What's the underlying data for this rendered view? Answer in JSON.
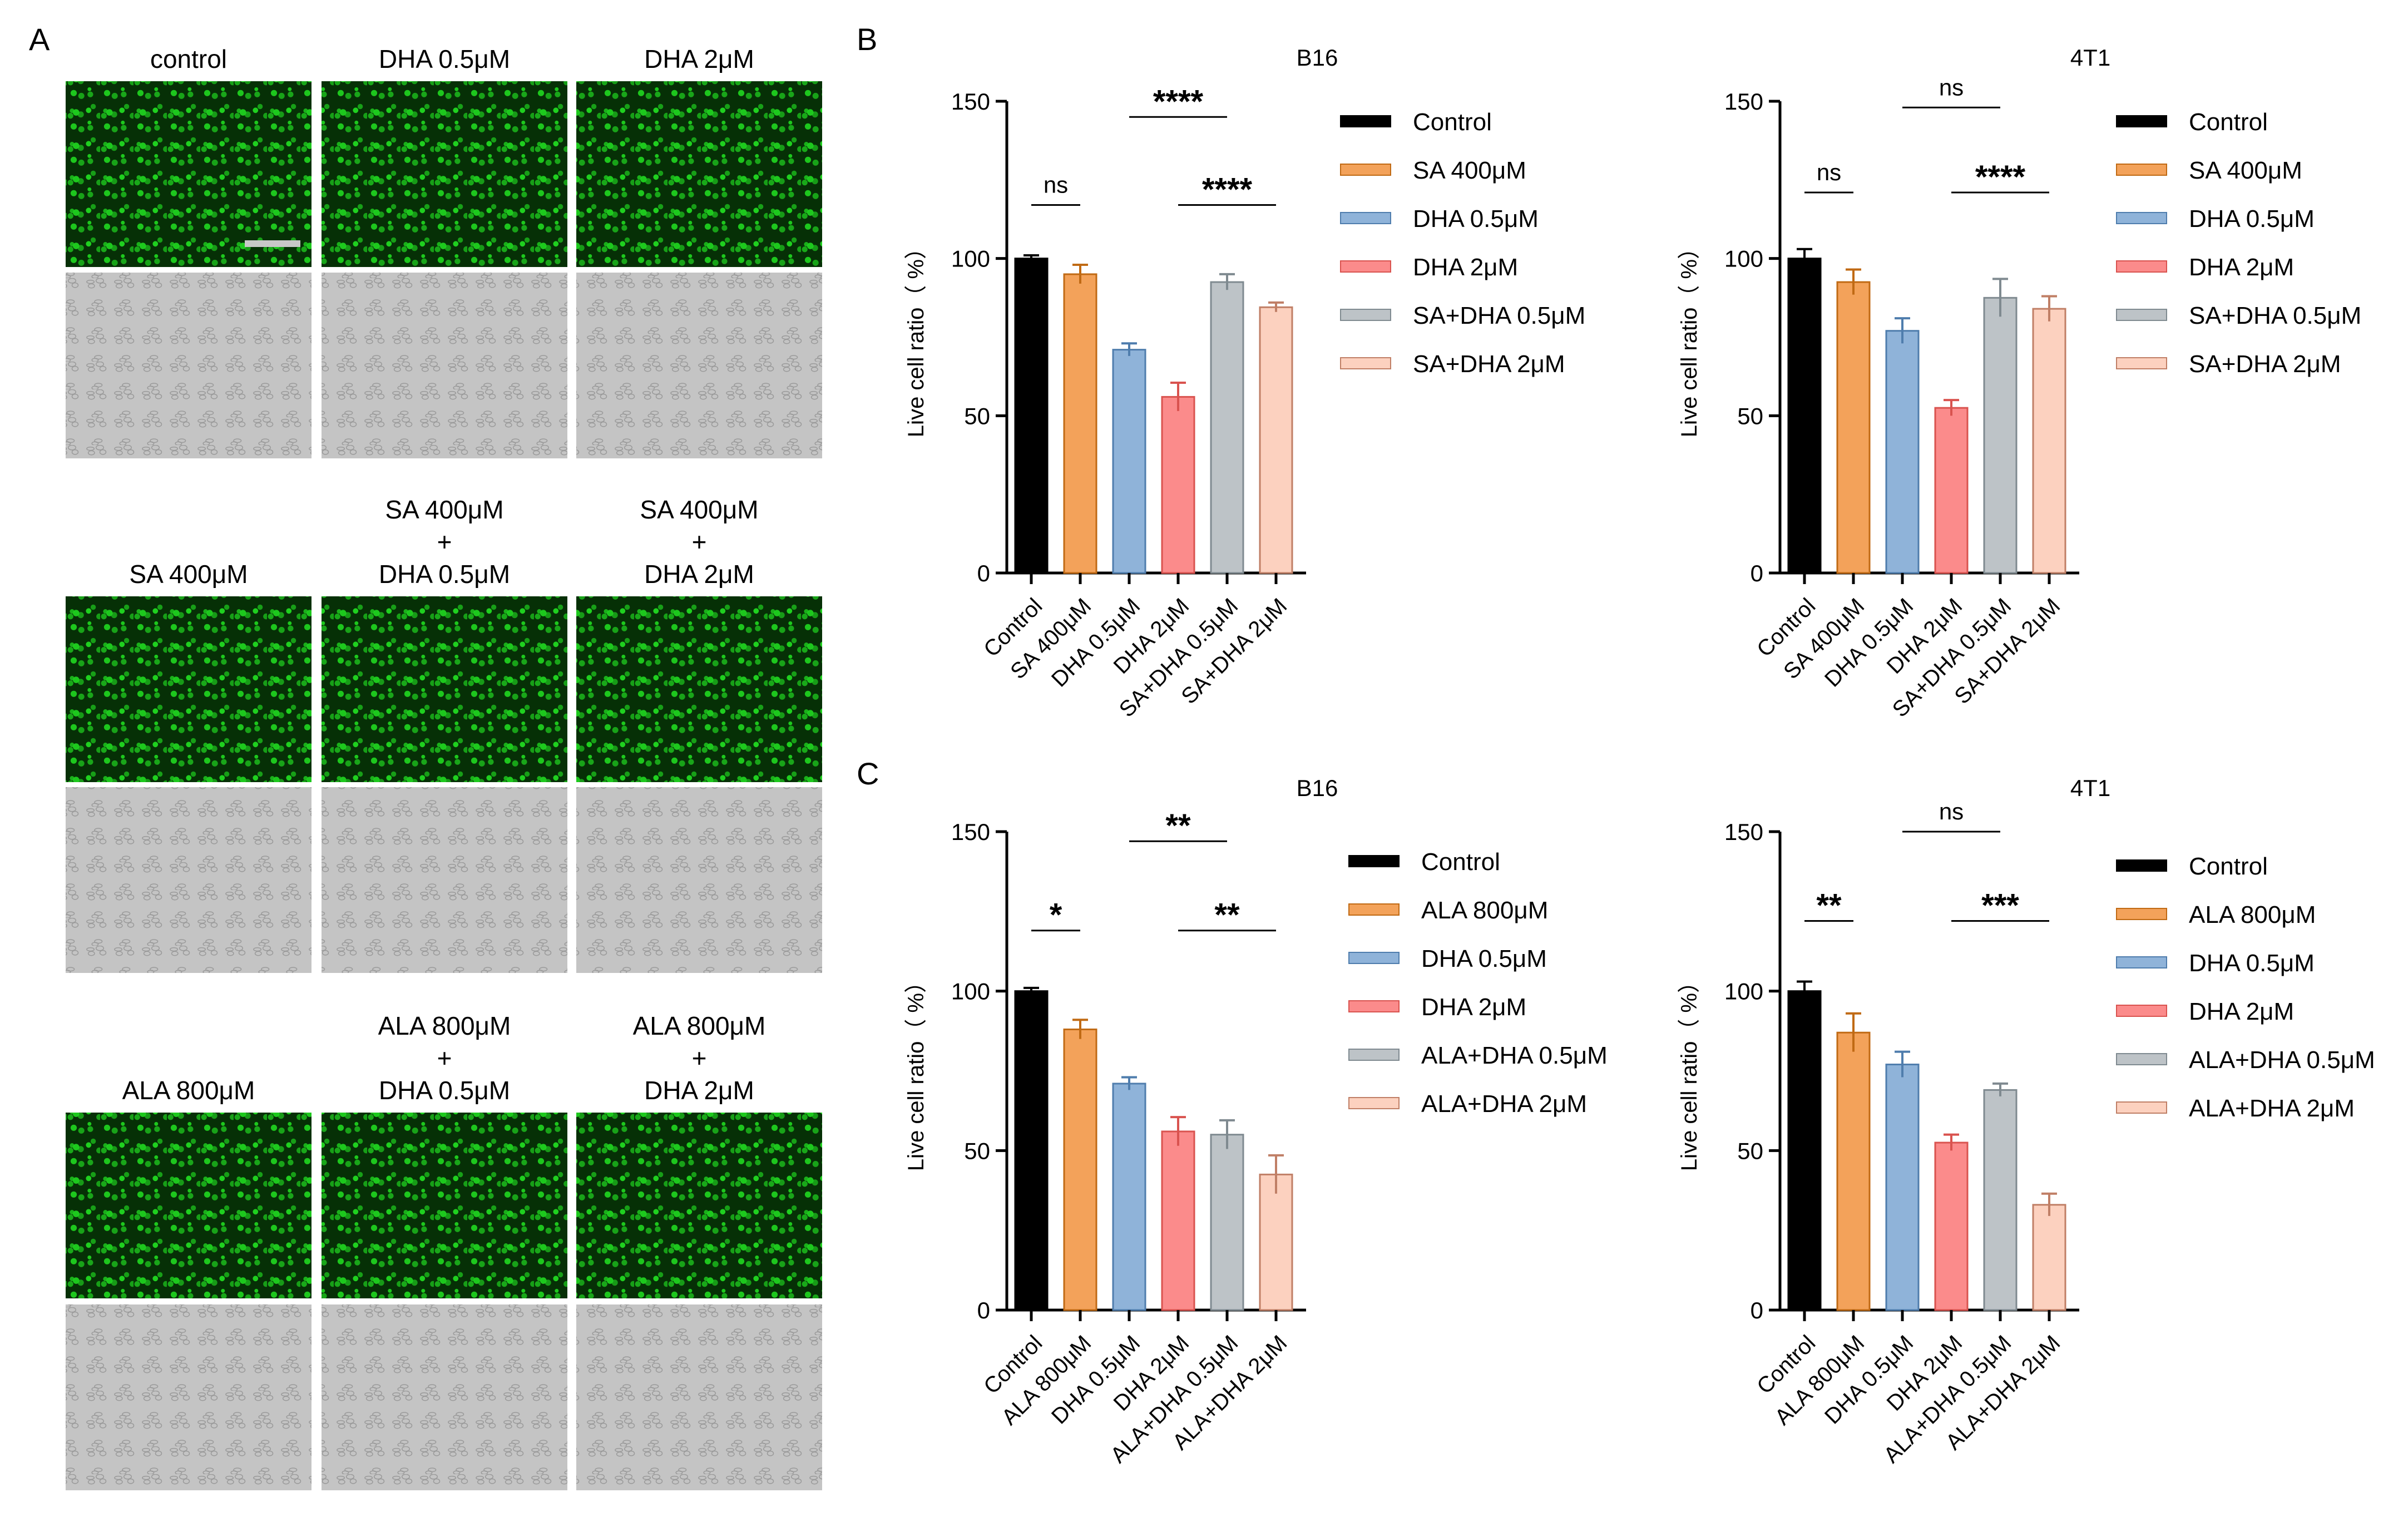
{
  "panel_labels": {
    "a": "A",
    "b": "B",
    "c": "C"
  },
  "micrographs": {
    "rows": [
      {
        "column_labels": [
          [
            "control"
          ],
          [
            "DHA 0.5μM"
          ],
          [
            "DHA 2μM"
          ]
        ]
      },
      {
        "column_labels": [
          [
            "SA 400μM"
          ],
          [
            "SA 400μM",
            "+",
            "DHA 0.5μM"
          ],
          [
            "SA 400μM",
            "+",
            "DHA 2μM"
          ]
        ]
      },
      {
        "column_labels": [
          [
            "ALA 800μM"
          ],
          [
            "ALA 800μM",
            "+",
            "DHA 0.5μM"
          ],
          [
            "ALA 800μM",
            "+",
            "DHA 2μM"
          ]
        ]
      }
    ],
    "fluorescence_color": "#1fd01f",
    "scale_bar": true
  },
  "chart_data": [
    {
      "panel": "B",
      "type": "bar",
      "title": "B16",
      "ylabel": "Live cell ratio（ %）",
      "ylim": [
        0,
        150
      ],
      "yticks": [
        0,
        50,
        100,
        150
      ],
      "categories": [
        "Control",
        "SA 400μM",
        "DHA 0.5μM",
        "DHA 2μM",
        "SA+DHA 0.5μM",
        "SA+DHA 2μM"
      ],
      "values": [
        100,
        95,
        71,
        56,
        92.5,
        84.5
      ],
      "errors": [
        1,
        3,
        2,
        4.5,
        2.5,
        1.5
      ],
      "colors": [
        "#000000",
        "#f3a25a",
        "#8fb3d9",
        "#fb8b8b",
        "#bdc3c7",
        "#fcd1bf"
      ],
      "edge_colors": [
        "#000000",
        "#c06a14",
        "#4f7dad",
        "#d9534f",
        "#7f8a90",
        "#c07f66"
      ],
      "legend": [
        "Control",
        "SA 400μM",
        "DHA 0.5μM",
        "DHA 2μM",
        "SA+DHA 0.5μM",
        "SA+DHA 2μM"
      ],
      "legend_position": "right",
      "significance": [
        {
          "label": "ns",
          "from": 0,
          "to": 1,
          "y": 117
        },
        {
          "label": "****",
          "from": 2,
          "to": 4,
          "y": 145
        },
        {
          "label": "****",
          "from": 3,
          "to": 5,
          "y": 117
        }
      ]
    },
    {
      "panel": "B",
      "type": "bar",
      "title": "4T1",
      "ylabel": "Live cell ratio（ %）",
      "ylim": [
        0,
        150
      ],
      "yticks": [
        0,
        50,
        100,
        150
      ],
      "categories": [
        "Control",
        "SA 400μM",
        "DHA 0.5μM",
        "DHA 2μM",
        "SA+DHA 0.5μM",
        "SA+DHA 2μM"
      ],
      "values": [
        100,
        92.5,
        77,
        52.5,
        87.5,
        84
      ],
      "errors": [
        3,
        4,
        4,
        2.5,
        6,
        4
      ],
      "colors": [
        "#000000",
        "#f3a25a",
        "#8fb3d9",
        "#fb8b8b",
        "#bdc3c7",
        "#fcd1bf"
      ],
      "edge_colors": [
        "#000000",
        "#c06a14",
        "#4f7dad",
        "#d9534f",
        "#7f8a90",
        "#c07f66"
      ],
      "legend": [
        "Control",
        "SA 400μM",
        "DHA 0.5μM",
        "DHA 2μM",
        "SA+DHA 0.5μM",
        "SA+DHA 2μM"
      ],
      "legend_position": "right",
      "significance": [
        {
          "label": "ns",
          "from": 0,
          "to": 1,
          "y": 121
        },
        {
          "label": "ns",
          "from": 2,
          "to": 4,
          "y": 148
        },
        {
          "label": "****",
          "from": 3,
          "to": 5,
          "y": 121
        }
      ]
    },
    {
      "panel": "C",
      "type": "bar",
      "title": "B16",
      "ylabel": "Live cell ratio（ %）",
      "ylim": [
        0,
        150
      ],
      "yticks": [
        0,
        50,
        100,
        150
      ],
      "categories": [
        "Control",
        "ALA 800μM",
        "DHA 0.5μM",
        "DHA 2μM",
        "ALA+DHA 0.5μM",
        "ALA+DHA 2μM"
      ],
      "values": [
        100,
        88,
        71,
        56,
        55,
        42.5
      ],
      "errors": [
        1,
        3,
        2,
        4.5,
        4.5,
        6
      ],
      "colors": [
        "#000000",
        "#f3a25a",
        "#8fb3d9",
        "#fb8b8b",
        "#bdc3c7",
        "#fcd1bf"
      ],
      "edge_colors": [
        "#000000",
        "#c06a14",
        "#4f7dad",
        "#d9534f",
        "#7f8a90",
        "#c07f66"
      ],
      "legend": [
        "Control",
        "ALA 800μM",
        "DHA 0.5μM",
        "DHA 2μM",
        "ALA+DHA 0.5μM",
        "ALA+DHA 2μM"
      ],
      "legend_position": "right",
      "significance": [
        {
          "label": "*",
          "from": 0,
          "to": 1,
          "y": 119
        },
        {
          "label": "**",
          "from": 2,
          "to": 4,
          "y": 147
        },
        {
          "label": "**",
          "from": 3,
          "to": 5,
          "y": 119
        }
      ]
    },
    {
      "panel": "C",
      "type": "bar",
      "title": "4T1",
      "ylabel": "Live cell ratio（ %）",
      "ylim": [
        0,
        150
      ],
      "yticks": [
        0,
        50,
        100,
        150
      ],
      "categories": [
        "Control",
        "ALA 800μM",
        "DHA 0.5μM",
        "DHA 2μM",
        "ALA+DHA 0.5μM",
        "ALA+DHA 2μM"
      ],
      "values": [
        100,
        87,
        77,
        52.5,
        69,
        33
      ],
      "errors": [
        3,
        6,
        4,
        2.5,
        2,
        3.5
      ],
      "colors": [
        "#000000",
        "#f3a25a",
        "#8fb3d9",
        "#fb8b8b",
        "#bdc3c7",
        "#fcd1bf"
      ],
      "edge_colors": [
        "#000000",
        "#c06a14",
        "#4f7dad",
        "#d9534f",
        "#7f8a90",
        "#c07f66"
      ],
      "legend": [
        "Control",
        "ALA 800μM",
        "DHA 0.5μM",
        "DHA 2μM",
        "ALA+DHA 0.5μM",
        "ALA+DHA 2μM"
      ],
      "legend_position": "right",
      "significance": [
        {
          "label": "**",
          "from": 0,
          "to": 1,
          "y": 122
        },
        {
          "label": "ns",
          "from": 2,
          "to": 4,
          "y": 150
        },
        {
          "label": "***",
          "from": 3,
          "to": 5,
          "y": 122
        }
      ]
    }
  ]
}
